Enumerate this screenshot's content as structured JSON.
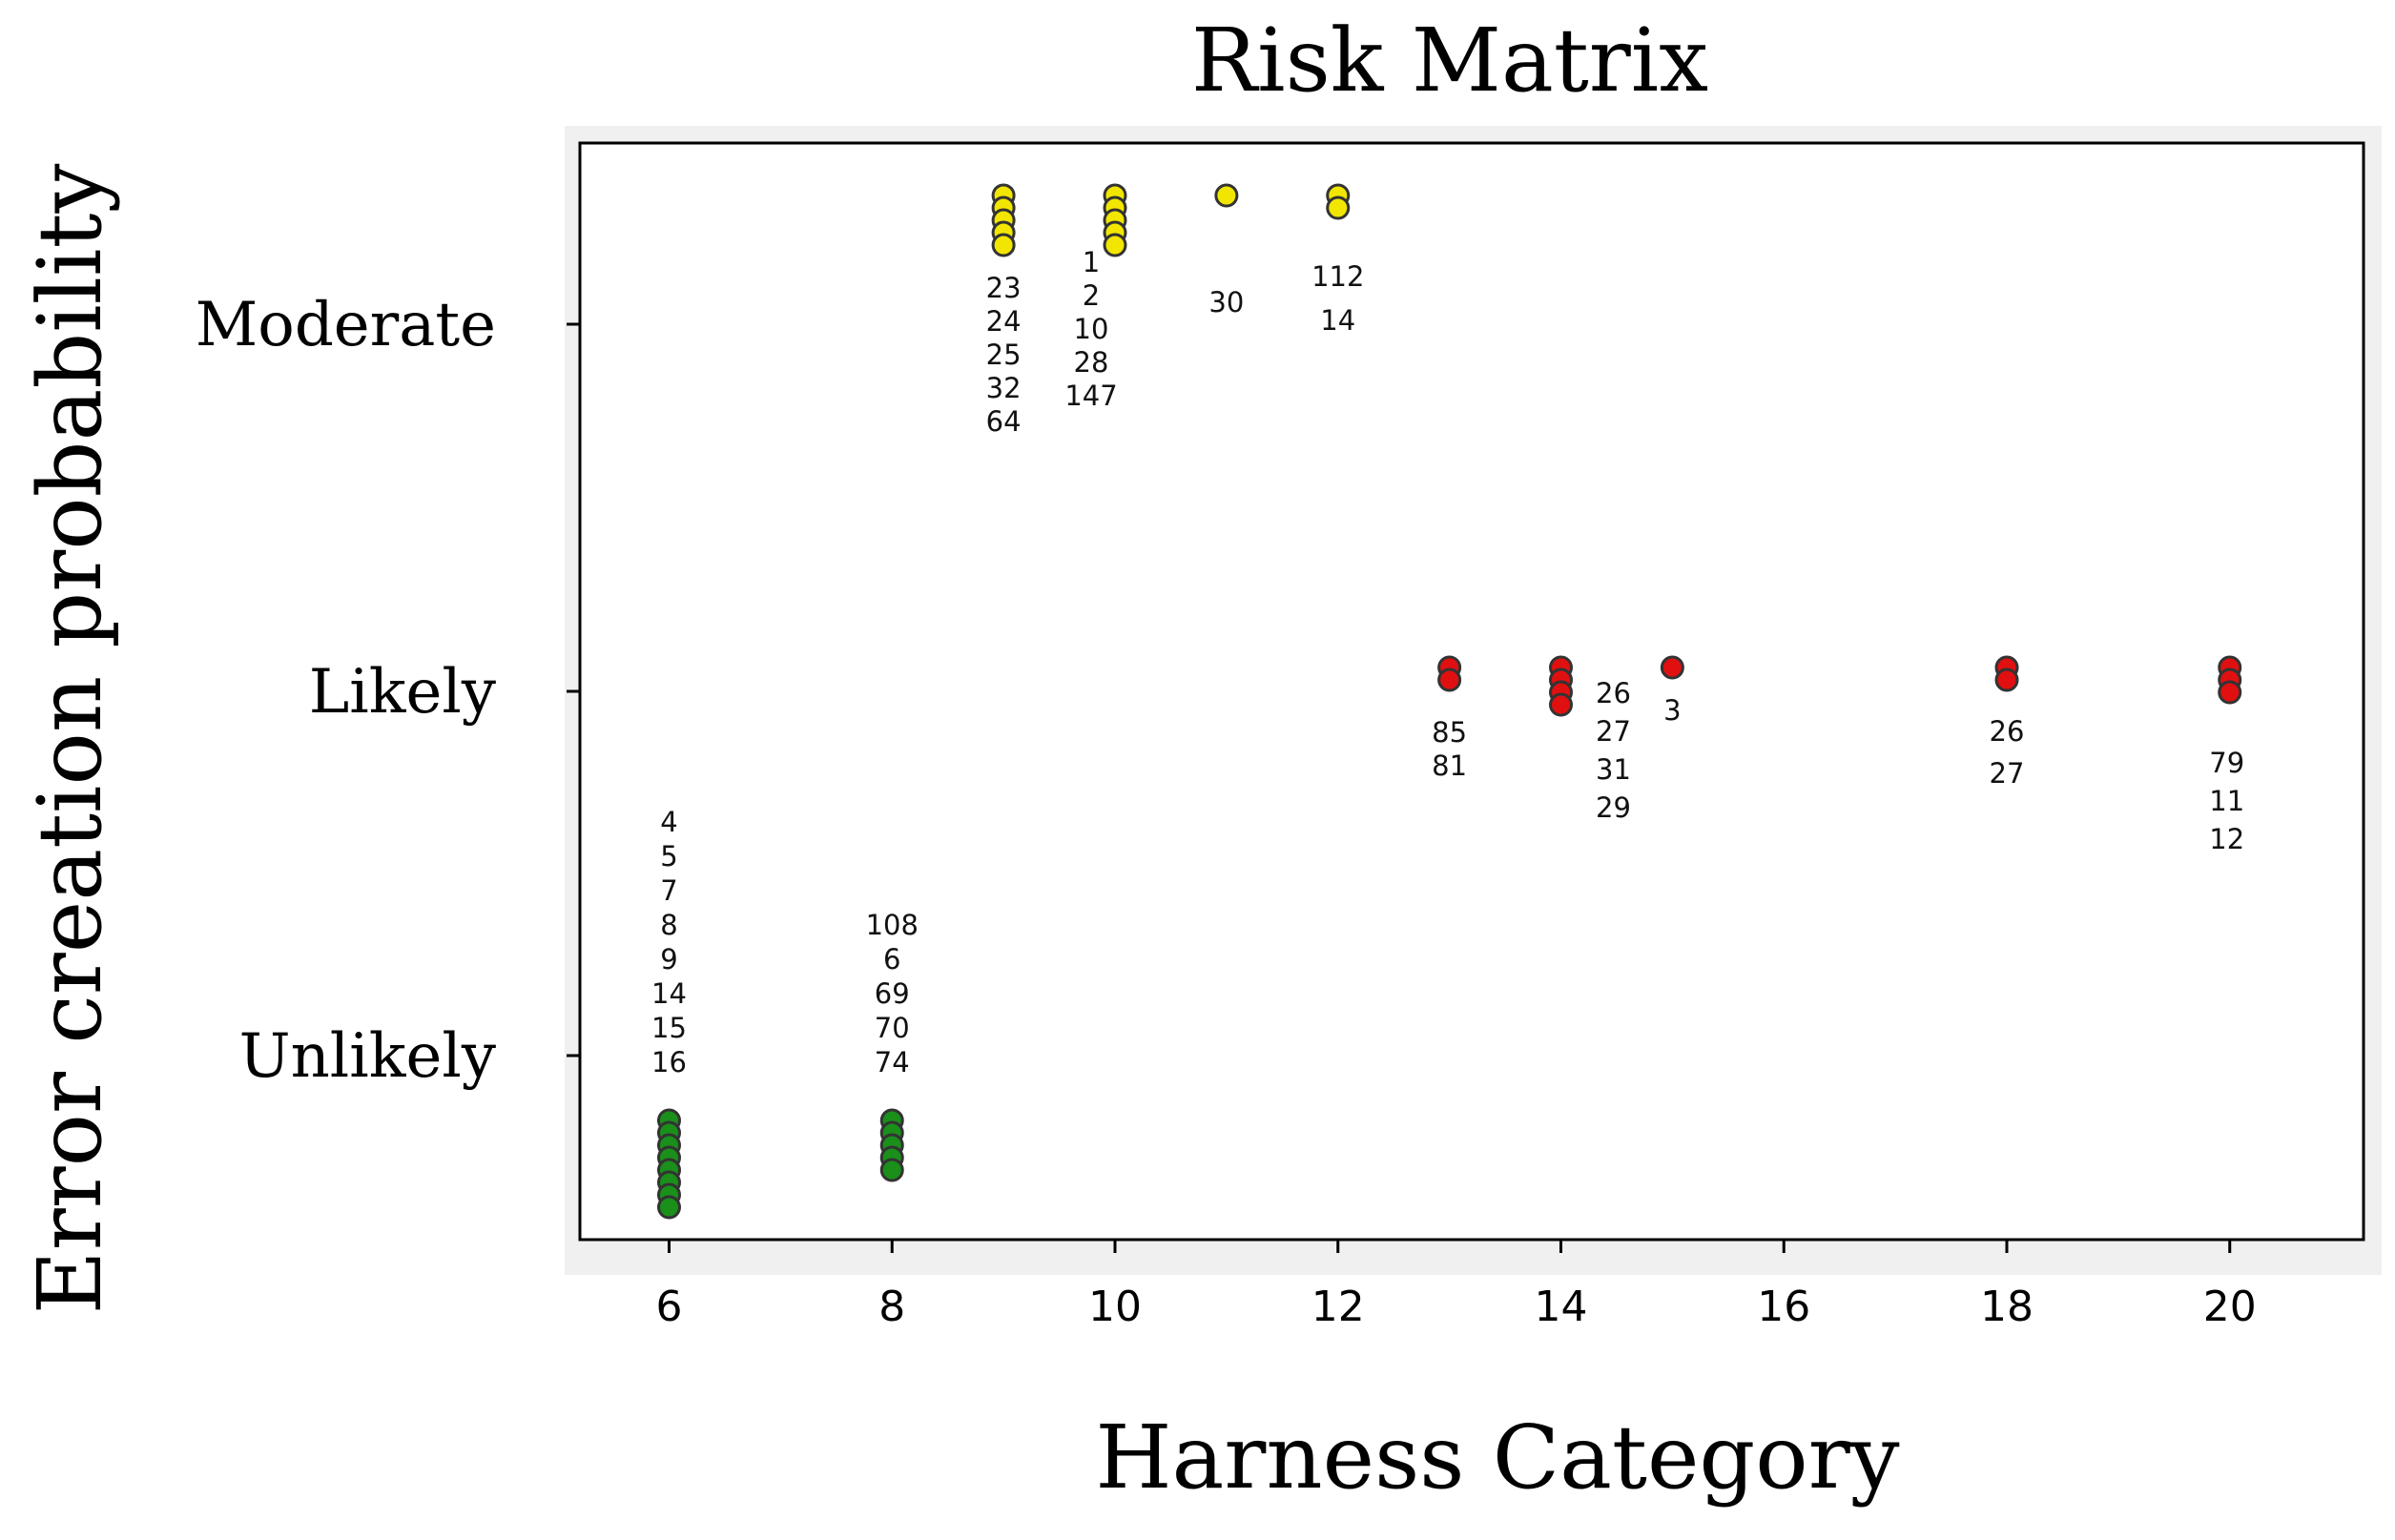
{
  "chart_data": {
    "type": "scatter",
    "title": "Risk Matrix",
    "xlabel": "Harness Category",
    "ylabel": "Error creation probability",
    "xlim": [
      5.2,
      21.2
    ],
    "x_ticks": [
      {
        "value": 6,
        "label": "6"
      },
      {
        "value": 8,
        "label": "8"
      },
      {
        "value": 10,
        "label": "10"
      },
      {
        "value": 12,
        "label": "12"
      },
      {
        "value": 14,
        "label": "14"
      },
      {
        "value": 16,
        "label": "16"
      },
      {
        "value": 18,
        "label": "18"
      },
      {
        "value": 20,
        "label": "20"
      }
    ],
    "y_categories": [
      "Unlikely",
      "Likely",
      "Moderate"
    ],
    "colors": {
      "Unlikely": "#1a8f1a",
      "Likely": "#e01010",
      "Moderate": "#f2e600"
    },
    "groups": [
      {
        "x": 6,
        "category": "Unlikely",
        "color": "#1a8f1a",
        "labels": [
          "4",
          "5",
          "7",
          "8",
          "9",
          "14",
          "15",
          "16"
        ]
      },
      {
        "x": 8,
        "category": "Unlikely",
        "color": "#1a8f1a",
        "labels": [
          "108",
          "6",
          "69",
          "70",
          "74"
        ]
      },
      {
        "x": 9,
        "category": "Moderate",
        "color": "#f2e600",
        "labels": [
          "23",
          "24",
          "25",
          "32",
          "64"
        ]
      },
      {
        "x": 10,
        "category": "Moderate",
        "color": "#f2e600",
        "labels": [
          "1",
          "2",
          "10",
          "28",
          "147"
        ]
      },
      {
        "x": 11,
        "category": "Moderate",
        "color": "#f2e600",
        "labels": [
          "30"
        ]
      },
      {
        "x": 12,
        "category": "Moderate",
        "color": "#f2e600",
        "labels": [
          "112",
          "14"
        ]
      },
      {
        "x": 13,
        "category": "Likely",
        "color": "#e01010",
        "labels": [
          "85",
          "81"
        ]
      },
      {
        "x": 14,
        "category": "Likely",
        "color": "#e01010",
        "labels": [
          "26",
          "27",
          "31",
          "29"
        ]
      },
      {
        "x": 15,
        "category": "Likely",
        "color": "#e01010",
        "labels": [
          "3"
        ]
      },
      {
        "x": 18,
        "category": "Likely",
        "color": "#e01010",
        "labels": [
          "26",
          "27"
        ]
      },
      {
        "x": 20,
        "category": "Likely",
        "color": "#e01010",
        "labels": [
          "79",
          "11",
          "12"
        ]
      }
    ]
  }
}
